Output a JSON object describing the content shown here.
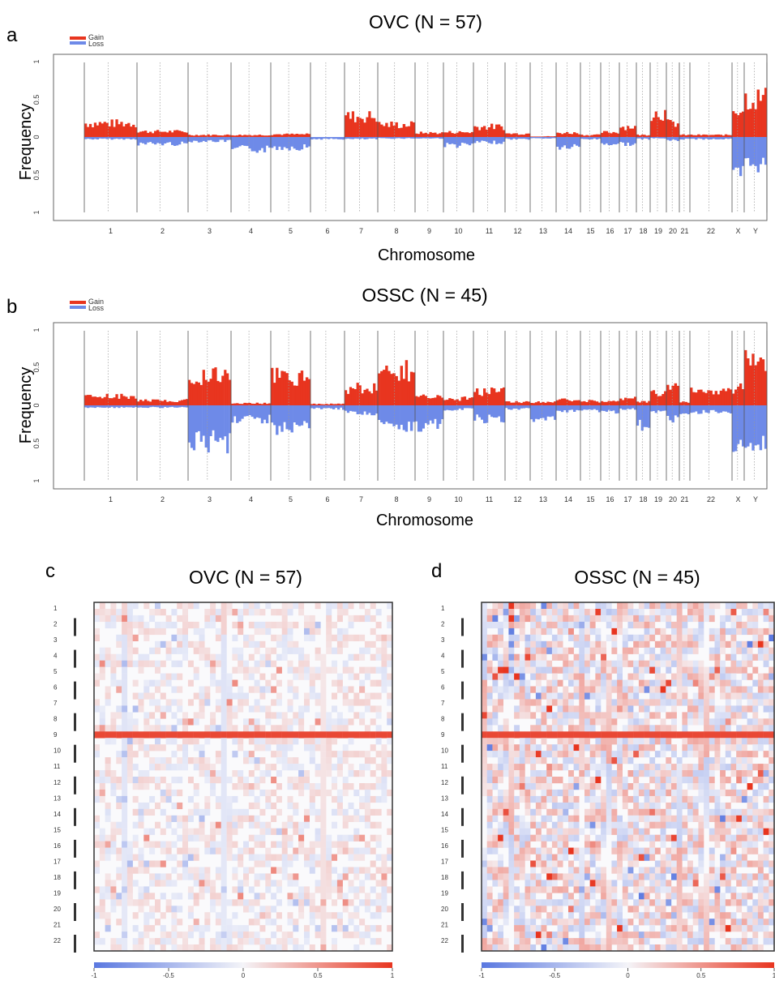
{
  "colors": {
    "gain": "#e8351f",
    "loss": "#6e8ae8",
    "frame": "#666666"
  },
  "chart_data": [
    {
      "panel": "a",
      "type": "area",
      "title": "OVC (N = 57)",
      "xlabel": "Chromosome",
      "ylabel": "Frequency",
      "y_ticks": [
        "1",
        "0.5",
        "0",
        "0.5",
        "1"
      ],
      "ylim": [
        -1,
        1
      ],
      "legend": [
        "Gain",
        "Loss"
      ],
      "legend_position": "top-left",
      "categories": [
        "1",
        "2",
        "3",
        "4",
        "5",
        "6",
        "7",
        "8",
        "9",
        "10",
        "11",
        "12",
        "13",
        "14",
        "15",
        "16",
        "17",
        "18",
        "19",
        "20",
        "21",
        "22",
        "X",
        "Y"
      ],
      "series": [
        {
          "name": "Gain",
          "values": [
            0.2,
            0.08,
            0.03,
            0.03,
            0.04,
            0.0,
            0.3,
            0.18,
            0.06,
            0.07,
            0.15,
            0.05,
            0.01,
            0.06,
            0.03,
            0.07,
            0.15,
            0.03,
            0.35,
            0.2,
            0.03,
            0.03,
            0.42,
            0.57
          ]
        },
        {
          "name": "Loss",
          "values": [
            -0.03,
            -0.1,
            -0.06,
            -0.18,
            -0.15,
            -0.03,
            -0.03,
            -0.02,
            -0.02,
            -0.12,
            -0.08,
            -0.03,
            -0.02,
            -0.15,
            -0.03,
            -0.1,
            -0.1,
            -0.03,
            -0.02,
            -0.05,
            -0.03,
            -0.03,
            -0.58,
            -0.4
          ]
        }
      ]
    },
    {
      "panel": "b",
      "type": "area",
      "title": "OSSC (N = 45)",
      "xlabel": "Chromosome",
      "ylabel": "Frequency",
      "y_ticks": [
        "1",
        "0.5",
        "0",
        "0.5",
        "1"
      ],
      "ylim": [
        -1,
        1
      ],
      "legend": [
        "Gain",
        "Loss"
      ],
      "legend_position": "top-left",
      "categories": [
        "1",
        "2",
        "3",
        "4",
        "5",
        "6",
        "7",
        "8",
        "9",
        "10",
        "11",
        "12",
        "13",
        "14",
        "15",
        "16",
        "17",
        "18",
        "19",
        "20",
        "21",
        "22",
        "X",
        "Y"
      ],
      "series": [
        {
          "name": "Gain",
          "values": [
            0.13,
            0.07,
            0.45,
            0.03,
            0.42,
            0.02,
            0.25,
            0.5,
            0.12,
            0.1,
            0.2,
            0.05,
            0.05,
            0.08,
            0.06,
            0.07,
            0.1,
            0.05,
            0.2,
            0.28,
            0.05,
            0.2,
            0.25,
            0.65
          ]
        },
        {
          "name": "Loss",
          "values": [
            -0.03,
            -0.03,
            -0.55,
            -0.2,
            -0.33,
            -0.05,
            -0.12,
            -0.3,
            -0.3,
            -0.06,
            -0.2,
            -0.05,
            -0.2,
            -0.08,
            -0.08,
            -0.1,
            -0.05,
            -0.3,
            -0.1,
            -0.2,
            -0.12,
            -0.1,
            -0.75,
            -0.55
          ]
        }
      ]
    },
    {
      "panel": "c",
      "type": "heatmap",
      "title": "OVC (N = 57)",
      "row_labels": [
        "1",
        "2",
        "3",
        "4",
        "5",
        "6",
        "7",
        "8",
        "9",
        "10",
        "11",
        "12",
        "13",
        "14",
        "15",
        "16",
        "17",
        "18",
        "19",
        "20",
        "21",
        "22"
      ],
      "colorbar_ticks": [
        "-1",
        "-0.5",
        "0",
        "0.5",
        "1"
      ],
      "colorbar_range": [
        -1,
        1
      ]
    },
    {
      "panel": "d",
      "type": "heatmap",
      "title": "OSSC (N = 45)",
      "row_labels": [
        "1",
        "2",
        "3",
        "4",
        "5",
        "6",
        "7",
        "8",
        "9",
        "10",
        "11",
        "12",
        "13",
        "14",
        "15",
        "16",
        "17",
        "18",
        "19",
        "20",
        "21",
        "22"
      ],
      "colorbar_ticks": [
        "-1",
        "-0.5",
        "0",
        "0.5",
        "1"
      ],
      "colorbar_range": [
        -1,
        1
      ]
    }
  ]
}
